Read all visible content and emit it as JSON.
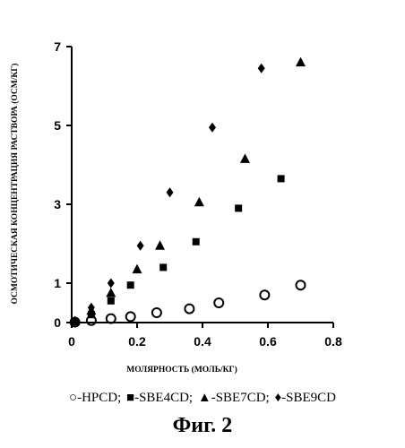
{
  "chart_data": {
    "type": "scatter",
    "title": "",
    "xlabel": "МОЛЯРНОСТЬ (МОЛЬ/КГ)",
    "ylabel": "ОСМОТИЧЕСКАЯ КОНЦЕНТРАЦИЯ РАСТВОРА (ОСМ/КГ)",
    "xlim": [
      0,
      0.8
    ],
    "ylim": [
      0,
      7
    ],
    "xticks": [
      "0",
      "0.2",
      "0.4",
      "0.6",
      "0.8"
    ],
    "yticks": [
      "0",
      "1",
      "3",
      "5",
      "7"
    ],
    "grid": false,
    "legend_position": "bottom",
    "series": [
      {
        "name": "HPCD",
        "marker": "open-circle",
        "x": [
          0.01,
          0.06,
          0.12,
          0.18,
          0.26,
          0.36,
          0.45,
          0.59,
          0.7
        ],
        "y": [
          0.01,
          0.05,
          0.1,
          0.15,
          0.25,
          0.35,
          0.5,
          0.7,
          0.95
        ]
      },
      {
        "name": "SBE4CD",
        "marker": "filled-square",
        "x": [
          0.01,
          0.06,
          0.12,
          0.18,
          0.28,
          0.38,
          0.51,
          0.64
        ],
        "y": [
          0.02,
          0.2,
          0.55,
          0.95,
          1.4,
          2.05,
          2.9,
          3.65
        ]
      },
      {
        "name": "SBE7CD",
        "marker": "filled-triangle",
        "x": [
          0.01,
          0.06,
          0.12,
          0.2,
          0.27,
          0.39,
          0.53,
          0.7
        ],
        "y": [
          0.03,
          0.3,
          0.75,
          1.35,
          1.95,
          3.05,
          4.15,
          6.6
        ]
      },
      {
        "name": "SBE9CD",
        "marker": "filled-diamond",
        "x": [
          0.01,
          0.06,
          0.12,
          0.21,
          0.3,
          0.43,
          0.58
        ],
        "y": [
          0.04,
          0.38,
          1.0,
          1.95,
          3.3,
          4.95,
          6.45
        ]
      }
    ]
  },
  "legend": {
    "entries": [
      {
        "symbol": "○",
        "label": "-HPCD;"
      },
      {
        "symbol": "■",
        "label": "-SBE4CD;"
      },
      {
        "symbol": "▲",
        "label": "-SBE7CD;"
      },
      {
        "symbol": "♦",
        "label": "-SBE9CD"
      }
    ]
  },
  "caption": "Фиг. 2"
}
